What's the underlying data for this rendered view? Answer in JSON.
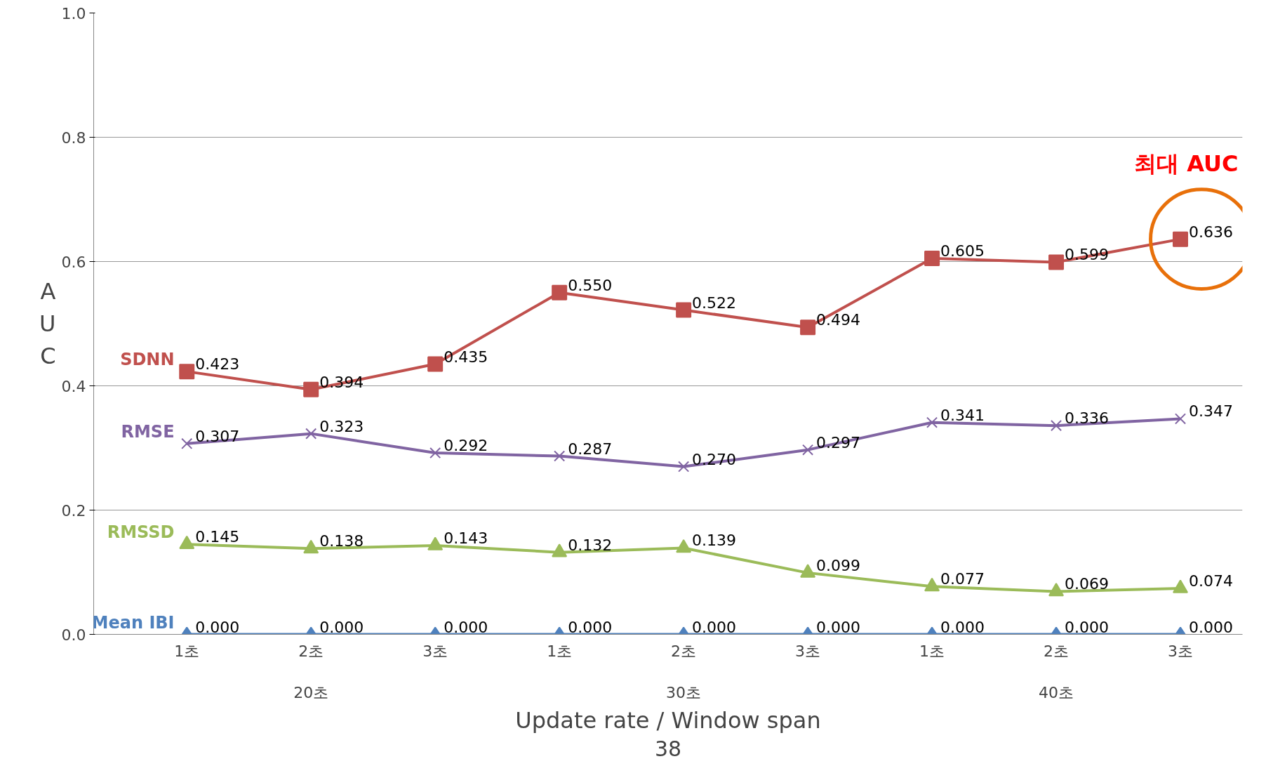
{
  "chart_data": {
    "type": "line",
    "categories": [
      "1초",
      "2초",
      "3초",
      "1초",
      "2초",
      "3초",
      "1초",
      "2초",
      "3초"
    ],
    "xlabel": "Update rate / Window span",
    "ylabel": "AUC",
    "ylim": [
      0,
      1
    ],
    "yticks": [
      {
        "value": 0,
        "label": "0.0"
      },
      {
        "value": 0.2,
        "label": "0.2"
      },
      {
        "value": 0.4,
        "label": "0.4"
      },
      {
        "value": 0.6,
        "label": "0.6"
      },
      {
        "value": 0.8,
        "label": "0.8"
      },
      {
        "value": 1,
        "label": "1.0"
      }
    ],
    "grid": "y",
    "series": [
      {
        "name": "SDNN",
        "color": "#c0504d",
        "marker": "square",
        "values": [
          0.423,
          0.394,
          0.435,
          0.55,
          0.522,
          0.494,
          0.605,
          0.599,
          0.636
        ],
        "value_labels": [
          "0.423",
          "0.394",
          "0.435",
          "0.550",
          "0.522",
          "0.494",
          "0.605",
          "0.599",
          "0.636"
        ]
      },
      {
        "name": "RMSE",
        "color": "#8064a2",
        "marker": "cross",
        "values": [
          0.307,
          0.323,
          0.292,
          0.287,
          0.27,
          0.297,
          0.341,
          0.336,
          0.347
        ],
        "value_labels": [
          "0.307",
          "0.323",
          "0.292",
          "0.287",
          "0.270",
          "0.297",
          "0.341",
          "0.336",
          "0.347"
        ]
      },
      {
        "name": "RMSSD",
        "color": "#9bbb59",
        "marker": "triangle",
        "values": [
          0.145,
          0.138,
          0.143,
          0.132,
          0.139,
          0.099,
          0.077,
          0.069,
          0.074
        ],
        "value_labels": [
          "0.145",
          "0.138",
          "0.143",
          "0.132",
          "0.139",
          "0.099",
          "0.077",
          "0.069",
          "0.074"
        ]
      },
      {
        "name": "Mean IBI",
        "color": "#4f81bd",
        "marker": "diamond",
        "values": [
          0,
          0,
          0,
          0,
          0,
          0,
          0,
          0,
          0
        ],
        "value_labels": [
          "0.000",
          "0.000",
          "0.000",
          "0.000",
          "0.000",
          "0.000",
          "0.000",
          "0.000",
          "0.000"
        ]
      }
    ],
    "annotations": [
      "20초",
      "30초",
      "40초",
      "최대 AUC",
      "38"
    ]
  }
}
